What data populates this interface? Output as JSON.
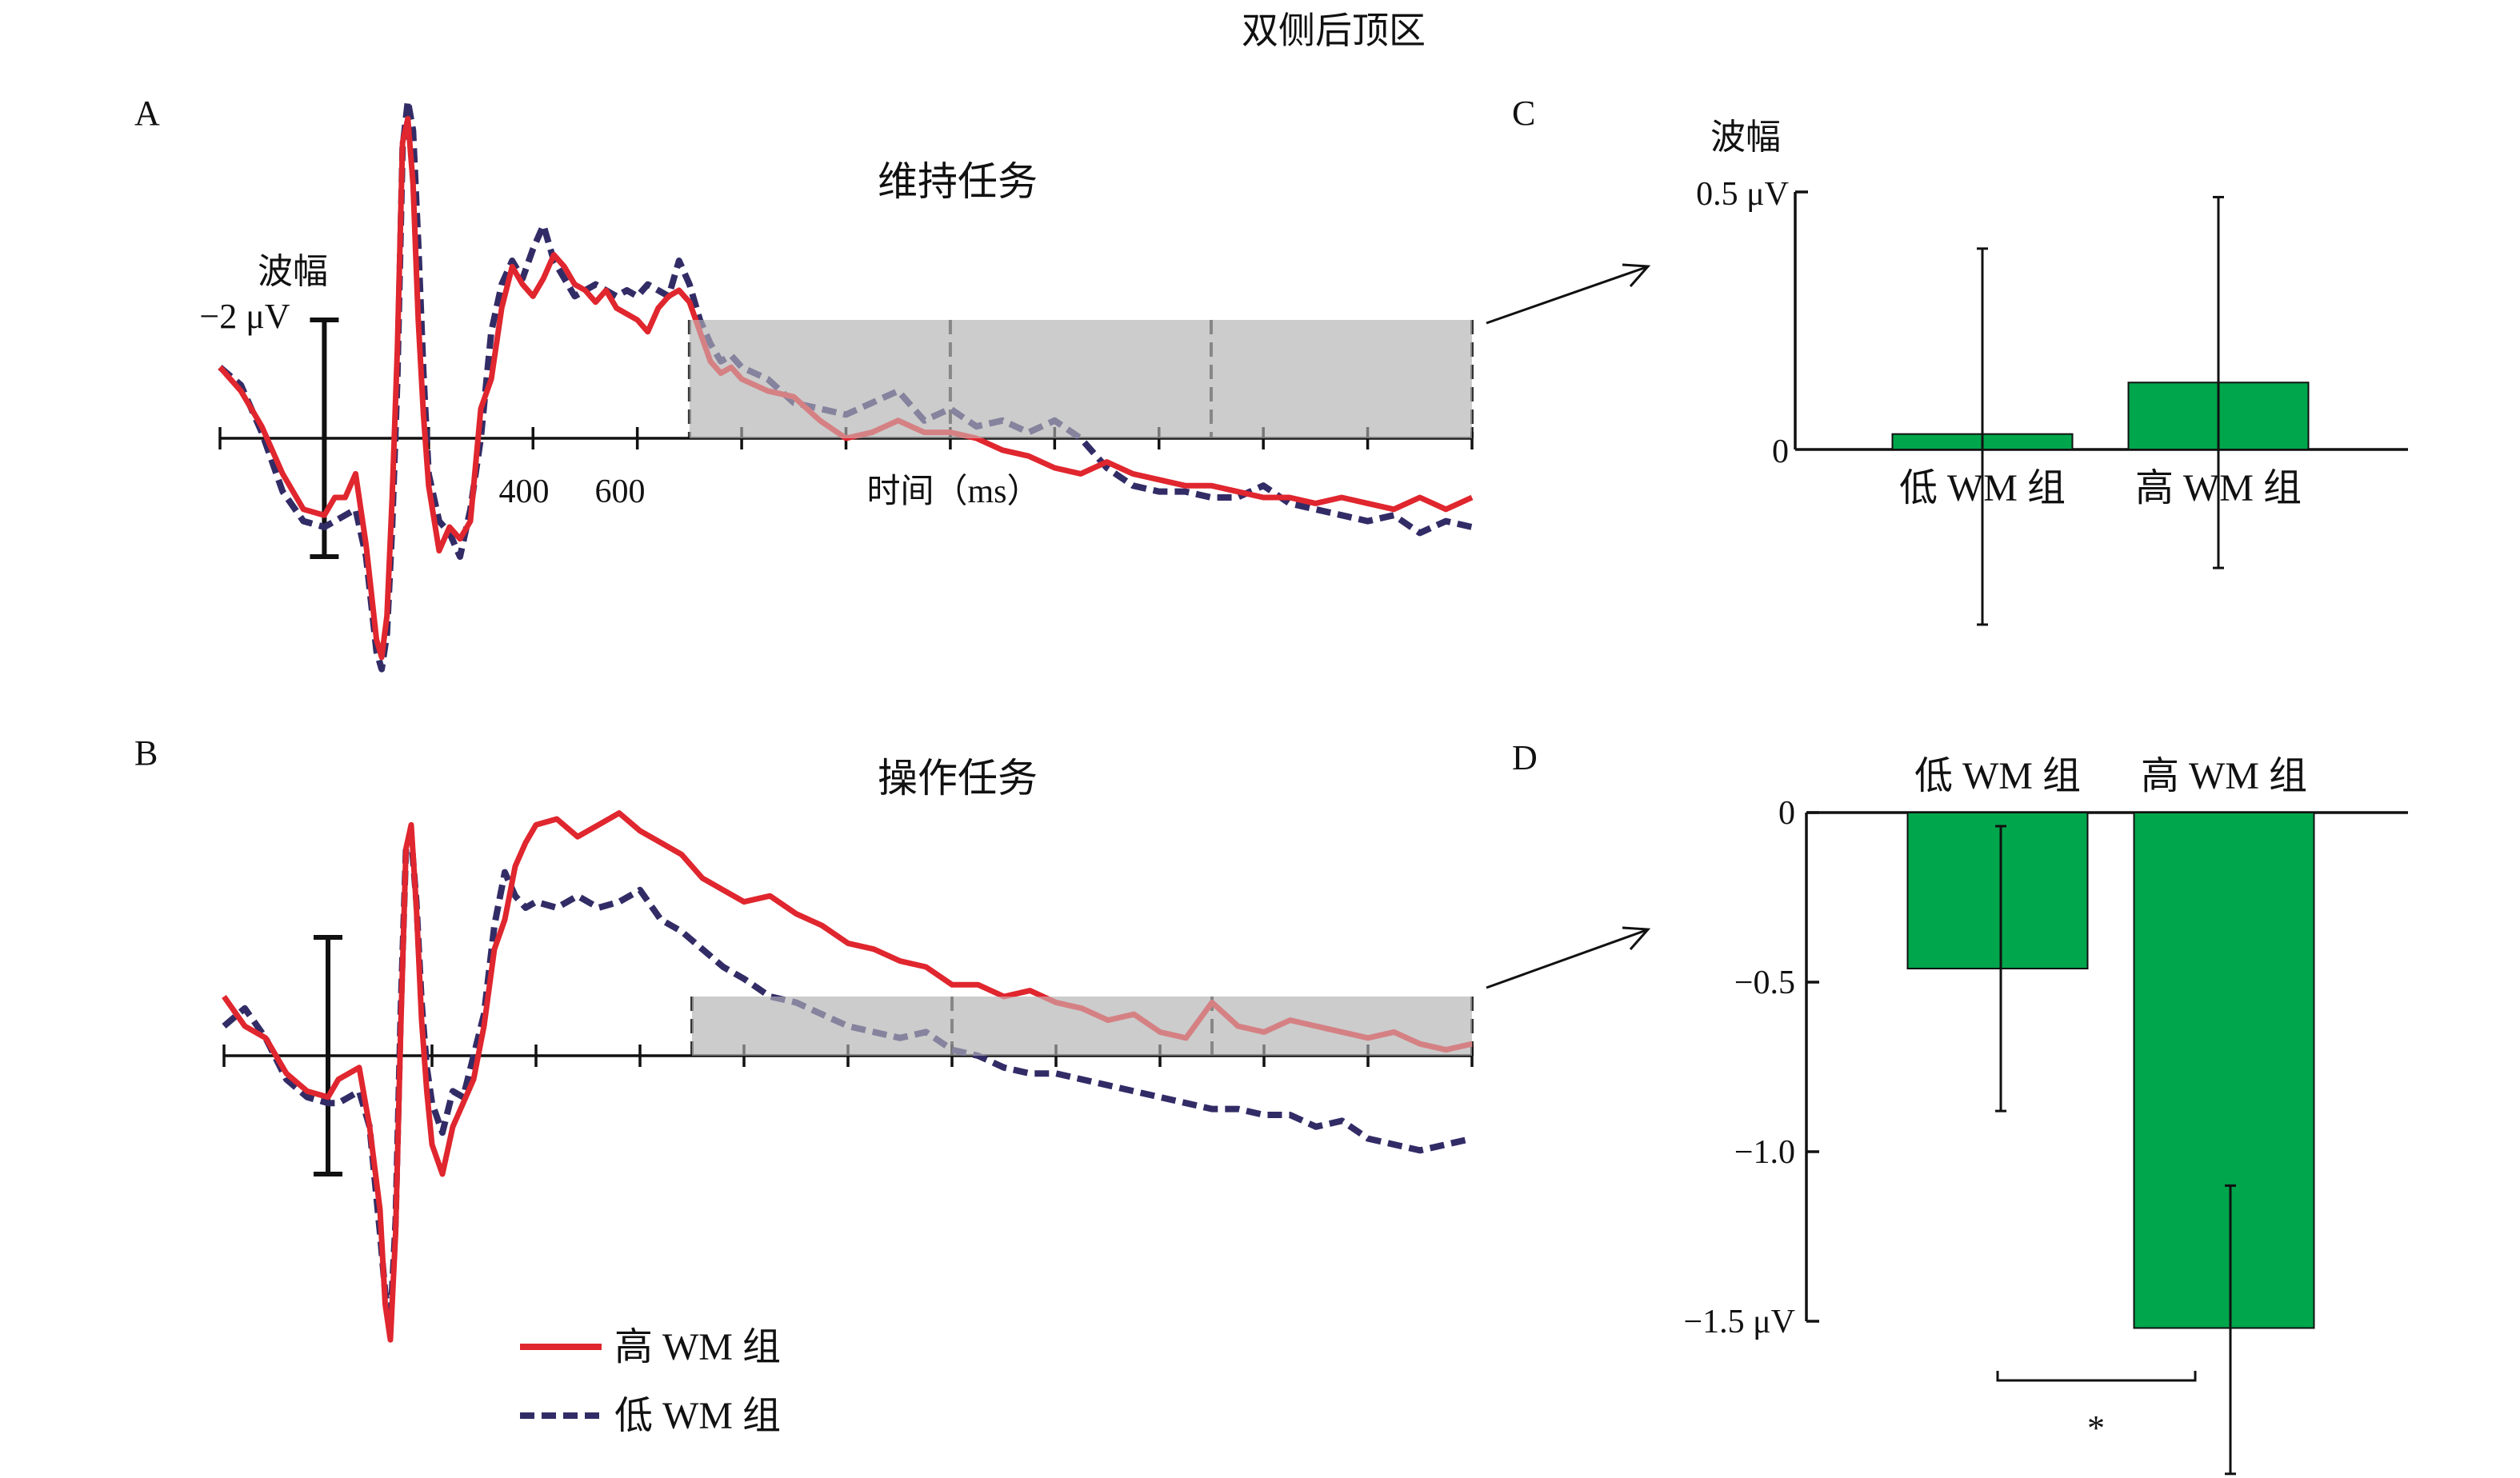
{
  "figure_title": "双侧后顶区",
  "colors": {
    "high_wm": "#e0262e",
    "low_wm": "#322c66",
    "bar": "#00a64c",
    "window": "#cccccc"
  },
  "legend": {
    "high": "高 WM 组",
    "low": "低 WM 组"
  },
  "chart_data": [
    {
      "panel": "A",
      "type": "line",
      "title": "维持任务",
      "ylabel": "波幅",
      "yscale_label": "−2 μV",
      "xlabel": "时间（ms）",
      "tick_labels": [
        "400",
        "600"
      ],
      "xlim": [
        -200,
        2200
      ],
      "ylim": [
        -4.5,
        6.5
      ],
      "y_inverted": true,
      "shaded_window": [
        700,
        2200
      ],
      "window_dividers": [
        700,
        1200,
        1700,
        2200
      ],
      "series": [
        {
          "name": "高 WM 组",
          "x": [
            -200,
            -160,
            -120,
            -80,
            -40,
            0,
            20,
            40,
            60,
            80,
            100,
            110,
            120,
            130,
            140,
            150,
            160,
            170,
            180,
            190,
            200,
            220,
            240,
            260,
            280,
            300,
            320,
            340,
            360,
            380,
            400,
            420,
            440,
            460,
            480,
            500,
            520,
            540,
            560,
            580,
            600,
            620,
            640,
            660,
            680,
            700,
            720,
            740,
            760,
            780,
            800,
            850,
            900,
            950,
            1000,
            1050,
            1100,
            1150,
            1200,
            1250,
            1300,
            1350,
            1400,
            1450,
            1500,
            1550,
            1600,
            1650,
            1700,
            1750,
            1800,
            1850,
            1900,
            1950,
            2000,
            2050,
            2100,
            2150,
            2200
          ],
          "y": [
            1.2,
            0.8,
            0.2,
            -0.6,
            -1.2,
            -1.3,
            -1.0,
            -1.0,
            -0.6,
            -1.8,
            -3.4,
            -3.7,
            -3.0,
            -1.0,
            1.5,
            5.0,
            5.4,
            4.3,
            2.0,
            0.4,
            -0.8,
            -1.9,
            -1.5,
            -1.7,
            -1.4,
            0.5,
            1.0,
            2.2,
            2.9,
            2.6,
            2.4,
            2.7,
            3.1,
            2.9,
            2.6,
            2.5,
            2.3,
            2.5,
            2.2,
            2.1,
            2.0,
            1.8,
            2.2,
            2.4,
            2.5,
            2.3,
            1.8,
            1.3,
            1.1,
            1.2,
            1.0,
            0.8,
            0.7,
            0.3,
            0.0,
            0.1,
            0.3,
            0.1,
            0.1,
            0.0,
            -0.2,
            -0.3,
            -0.5,
            -0.6,
            -0.4,
            -0.6,
            -0.7,
            -0.8,
            -0.8,
            -0.9,
            -1.0,
            -1.0,
            -1.1,
            -1.0,
            -1.1,
            -1.2,
            -1.0,
            -1.2,
            -1.0
          ]
        },
        {
          "name": "低 WM 组",
          "x": [
            -200,
            -160,
            -120,
            -80,
            -40,
            0,
            20,
            40,
            60,
            80,
            100,
            110,
            120,
            130,
            140,
            150,
            160,
            170,
            180,
            190,
            200,
            220,
            240,
            260,
            280,
            300,
            320,
            340,
            360,
            380,
            400,
            420,
            440,
            460,
            480,
            500,
            520,
            540,
            560,
            580,
            600,
            620,
            640,
            660,
            680,
            700,
            720,
            740,
            760,
            780,
            800,
            850,
            900,
            950,
            1000,
            1050,
            1100,
            1150,
            1200,
            1250,
            1300,
            1350,
            1400,
            1450,
            1500,
            1550,
            1600,
            1650,
            1700,
            1750,
            1800,
            1850,
            1900,
            1950,
            2000,
            2050,
            2100,
            2150,
            2200
          ],
          "y": [
            1.2,
            0.9,
            0.1,
            -0.9,
            -1.4,
            -1.5,
            -1.4,
            -1.3,
            -1.2,
            -2.0,
            -3.6,
            -3.9,
            -3.3,
            -1.5,
            1.0,
            4.9,
            5.7,
            5.2,
            3.3,
            1.1,
            -0.6,
            -1.4,
            -1.6,
            -2.0,
            -1.2,
            0.0,
            1.8,
            2.6,
            3.0,
            2.7,
            3.2,
            3.6,
            3.0,
            2.7,
            2.4,
            2.5,
            2.6,
            2.5,
            2.4,
            2.5,
            2.4,
            2.6,
            2.5,
            2.4,
            3.0,
            2.6,
            2.0,
            1.6,
            1.3,
            1.4,
            1.2,
            1.0,
            0.6,
            0.5,
            0.4,
            0.6,
            0.8,
            0.3,
            0.5,
            0.2,
            0.3,
            0.1,
            0.3,
            0.0,
            -0.5,
            -0.8,
            -0.9,
            -0.9,
            -1.0,
            -1.0,
            -0.8,
            -1.1,
            -1.2,
            -1.3,
            -1.4,
            -1.3,
            -1.6,
            -1.4,
            -1.5
          ]
        }
      ]
    },
    {
      "panel": "B",
      "type": "line",
      "title": "操作任务",
      "xlim": [
        -200,
        2200
      ],
      "ylim": [
        -4.5,
        4.2
      ],
      "y_inverted": true,
      "shaded_window": [
        700,
        2200
      ],
      "window_dividers": [
        700,
        1200,
        1700,
        2200
      ],
      "series": [
        {
          "name": "高 WM 组",
          "x": [
            -200,
            -160,
            -120,
            -80,
            -40,
            0,
            20,
            40,
            60,
            80,
            100,
            110,
            120,
            130,
            140,
            150,
            160,
            170,
            180,
            190,
            200,
            220,
            240,
            260,
            280,
            300,
            320,
            340,
            360,
            380,
            400,
            440,
            480,
            520,
            560,
            600,
            640,
            680,
            720,
            760,
            800,
            850,
            900,
            950,
            1000,
            1050,
            1100,
            1150,
            1200,
            1250,
            1300,
            1350,
            1400,
            1450,
            1500,
            1550,
            1600,
            1650,
            1700,
            1750,
            1800,
            1850,
            1900,
            1950,
            2000,
            2050,
            2100,
            2150,
            2200
          ],
          "y": [
            1.0,
            0.5,
            0.3,
            -0.3,
            -0.6,
            -0.7,
            -0.4,
            -0.3,
            -0.2,
            -1.2,
            -2.6,
            -4.2,
            -4.8,
            -3.0,
            0.5,
            3.5,
            3.9,
            2.5,
            0.6,
            -0.6,
            -1.5,
            -2.0,
            -1.2,
            -0.8,
            -0.4,
            0.5,
            1.8,
            2.3,
            3.2,
            3.6,
            3.9,
            4.0,
            3.7,
            3.9,
            4.1,
            3.8,
            3.6,
            3.4,
            3.0,
            2.8,
            2.6,
            2.7,
            2.4,
            2.2,
            1.9,
            1.8,
            1.6,
            1.5,
            1.2,
            1.2,
            1.0,
            1.1,
            0.9,
            0.8,
            0.6,
            0.7,
            0.4,
            0.3,
            0.9,
            0.5,
            0.4,
            0.6,
            0.5,
            0.4,
            0.3,
            0.4,
            0.2,
            0.1,
            0.2
          ]
        },
        {
          "name": "低 WM 组",
          "x": [
            -200,
            -160,
            -120,
            -80,
            -40,
            0,
            20,
            40,
            60,
            80,
            100,
            110,
            120,
            130,
            140,
            150,
            160,
            170,
            180,
            190,
            200,
            220,
            240,
            260,
            280,
            300,
            320,
            340,
            360,
            380,
            400,
            440,
            480,
            520,
            560,
            600,
            640,
            680,
            720,
            760,
            800,
            850,
            900,
            950,
            1000,
            1050,
            1100,
            1150,
            1200,
            1250,
            1300,
            1350,
            1400,
            1450,
            1500,
            1550,
            1600,
            1650,
            1700,
            1750,
            1800,
            1850,
            1900,
            1950,
            2000,
            2050,
            2100,
            2150,
            2200
          ],
          "y": [
            0.5,
            0.8,
            0.3,
            -0.4,
            -0.7,
            -0.8,
            -0.8,
            -0.7,
            -0.6,
            -1.2,
            -3.0,
            -4.0,
            -4.5,
            -2.8,
            0.8,
            3.5,
            3.7,
            2.6,
            0.9,
            -0.2,
            -0.8,
            -1.3,
            -0.6,
            -0.7,
            0.0,
            0.7,
            2.2,
            3.1,
            2.7,
            2.5,
            2.6,
            2.5,
            2.7,
            2.5,
            2.6,
            2.8,
            2.3,
            2.1,
            1.8,
            1.5,
            1.3,
            1.0,
            0.9,
            0.7,
            0.5,
            0.4,
            0.3,
            0.4,
            0.1,
            0.0,
            -0.2,
            -0.3,
            -0.3,
            -0.4,
            -0.5,
            -0.6,
            -0.7,
            -0.8,
            -0.9,
            -0.9,
            -1.0,
            -1.0,
            -1.2,
            -1.1,
            -1.4,
            -1.5,
            -1.6,
            -1.5,
            -1.4
          ]
        }
      ]
    },
    {
      "panel": "C",
      "type": "bar",
      "ylabel": "波幅",
      "ytick_labels": [
        "0.5 μV",
        "0"
      ],
      "ylim": [
        -0.35,
        0.5
      ],
      "categories": [
        "低 WM 组",
        "高 WM 组"
      ],
      "values": [
        0.03,
        0.13
      ],
      "err_low": [
        -0.34,
        -0.23
      ],
      "err_high": [
        0.39,
        0.49
      ]
    },
    {
      "panel": "D",
      "type": "bar",
      "ytick_labels": [
        "0",
        "−0.5",
        "−1.0",
        "−1.5 μV"
      ],
      "ytick_values": [
        0,
        -0.5,
        -1.0,
        -1.5
      ],
      "ylim": [
        -1.95,
        0
      ],
      "categories": [
        "低 WM 组",
        "高 WM 组"
      ],
      "values": [
        -0.46,
        -1.52
      ],
      "err_low": [
        -0.88,
        -1.95
      ],
      "err_high": [
        -0.04,
        -1.1
      ],
      "significance": "*"
    }
  ]
}
